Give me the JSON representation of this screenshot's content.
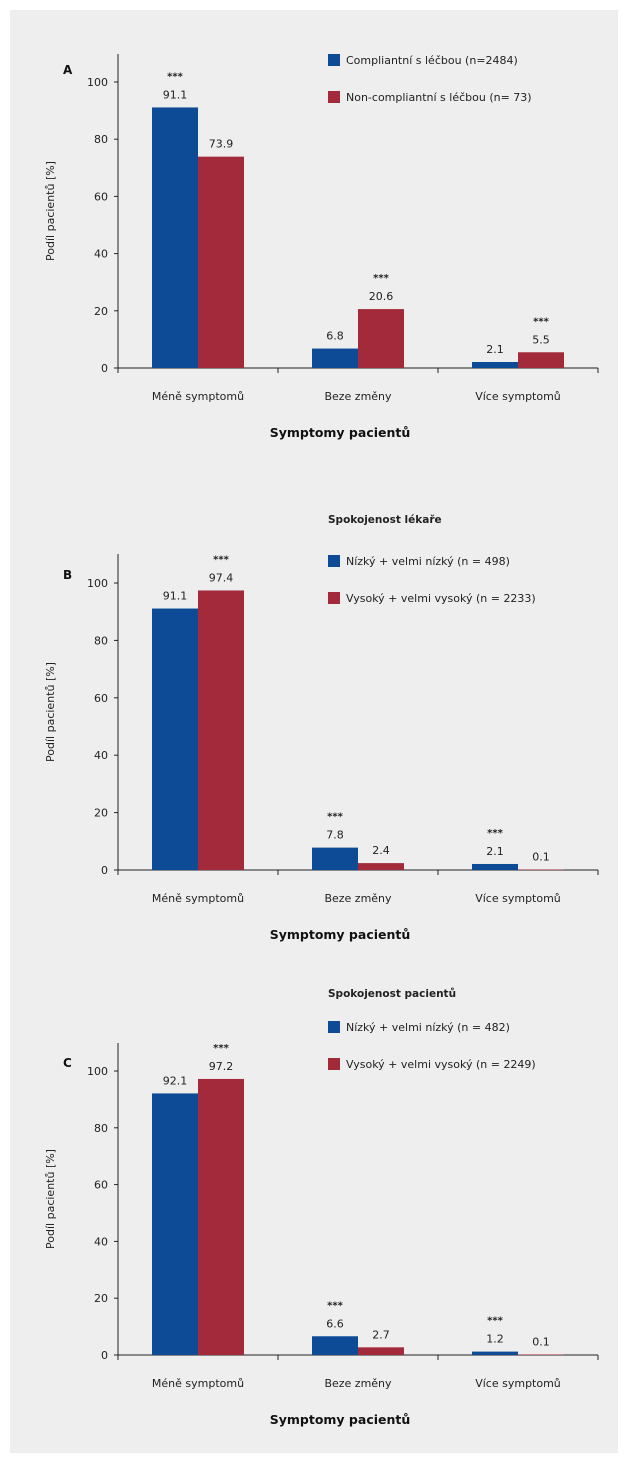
{
  "colors": {
    "series1": "#0d4b96",
    "series2": "#a32a3a",
    "background": "#eeeeee",
    "axis": "#222222"
  },
  "chart_data": [
    {
      "type": "bar",
      "panel_label": "A",
      "legend_title": "",
      "categories": [
        "Méně symptomů",
        "Beze změny",
        "Více symptomů"
      ],
      "series": [
        {
          "name": "Compliantní s léčbou (n=2484)",
          "values": [
            91.1,
            6.8,
            2.1
          ],
          "labels": [
            "91.1",
            "6.8",
            "2.1"
          ],
          "significance": [
            "***",
            "",
            ""
          ]
        },
        {
          "name": "Non-compliantní s léčbou (n= 73)",
          "values": [
            73.9,
            20.6,
            5.5
          ],
          "labels": [
            "73.9",
            "20.6",
            "5.5"
          ],
          "significance": [
            "",
            "***",
            "***"
          ]
        }
      ],
      "xlabel": "Symptomy pacientů",
      "ylabel": "Podíl pacientů [%]",
      "ylim": [
        0,
        100
      ],
      "yticks": [
        "0",
        "20",
        "40",
        "60",
        "80",
        "100"
      ],
      "legend_position": "top-right",
      "grid": false
    },
    {
      "type": "bar",
      "panel_label": "B",
      "legend_title": "Spokojenost lékaře",
      "categories": [
        "Méně symptomů",
        "Beze změny",
        "Více symptomů"
      ],
      "series": [
        {
          "name": "Nízký + velmi nízký (n = 498)",
          "values": [
            91.1,
            7.8,
            2.1
          ],
          "labels": [
            "91.1",
            "7.8",
            "2.1"
          ],
          "significance": [
            "",
            "***",
            "***"
          ]
        },
        {
          "name": "Vysoký + velmi vysoký (n = 2233)",
          "values": [
            97.4,
            2.4,
            0.1
          ],
          "labels": [
            "97.4",
            "2.4",
            "0.1"
          ],
          "significance": [
            "***",
            "",
            ""
          ]
        }
      ],
      "xlabel": "Symptomy pacientů",
      "ylabel": "Podíl pacientů [%]",
      "ylim": [
        0,
        100
      ],
      "yticks": [
        "0",
        "20",
        "40",
        "60",
        "80",
        "100"
      ],
      "legend_position": "top-right",
      "grid": false
    },
    {
      "type": "bar",
      "panel_label": "C",
      "legend_title": "Spokojenost pacientů",
      "categories": [
        "Méně symptomů",
        "Beze změny",
        "Více symptomů"
      ],
      "series": [
        {
          "name": "Nízký + velmi nízký (n = 482)",
          "values": [
            92.1,
            6.6,
            1.2
          ],
          "labels": [
            "92.1",
            "6.6",
            "1.2"
          ],
          "significance": [
            "",
            "***",
            "***"
          ]
        },
        {
          "name": "Vysoký + velmi vysoký (n = 2249)",
          "values": [
            97.2,
            2.7,
            0.1
          ],
          "labels": [
            "97.2",
            "2.7",
            "0.1"
          ],
          "significance": [
            "***",
            "",
            ""
          ]
        }
      ],
      "xlabel": "Symptomy pacientů",
      "ylabel": "Podíl pacientů [%]",
      "ylim": [
        0,
        100
      ],
      "yticks": [
        "0",
        "20",
        "40",
        "60",
        "80",
        "100"
      ],
      "legend_position": "top-right",
      "grid": false
    }
  ]
}
